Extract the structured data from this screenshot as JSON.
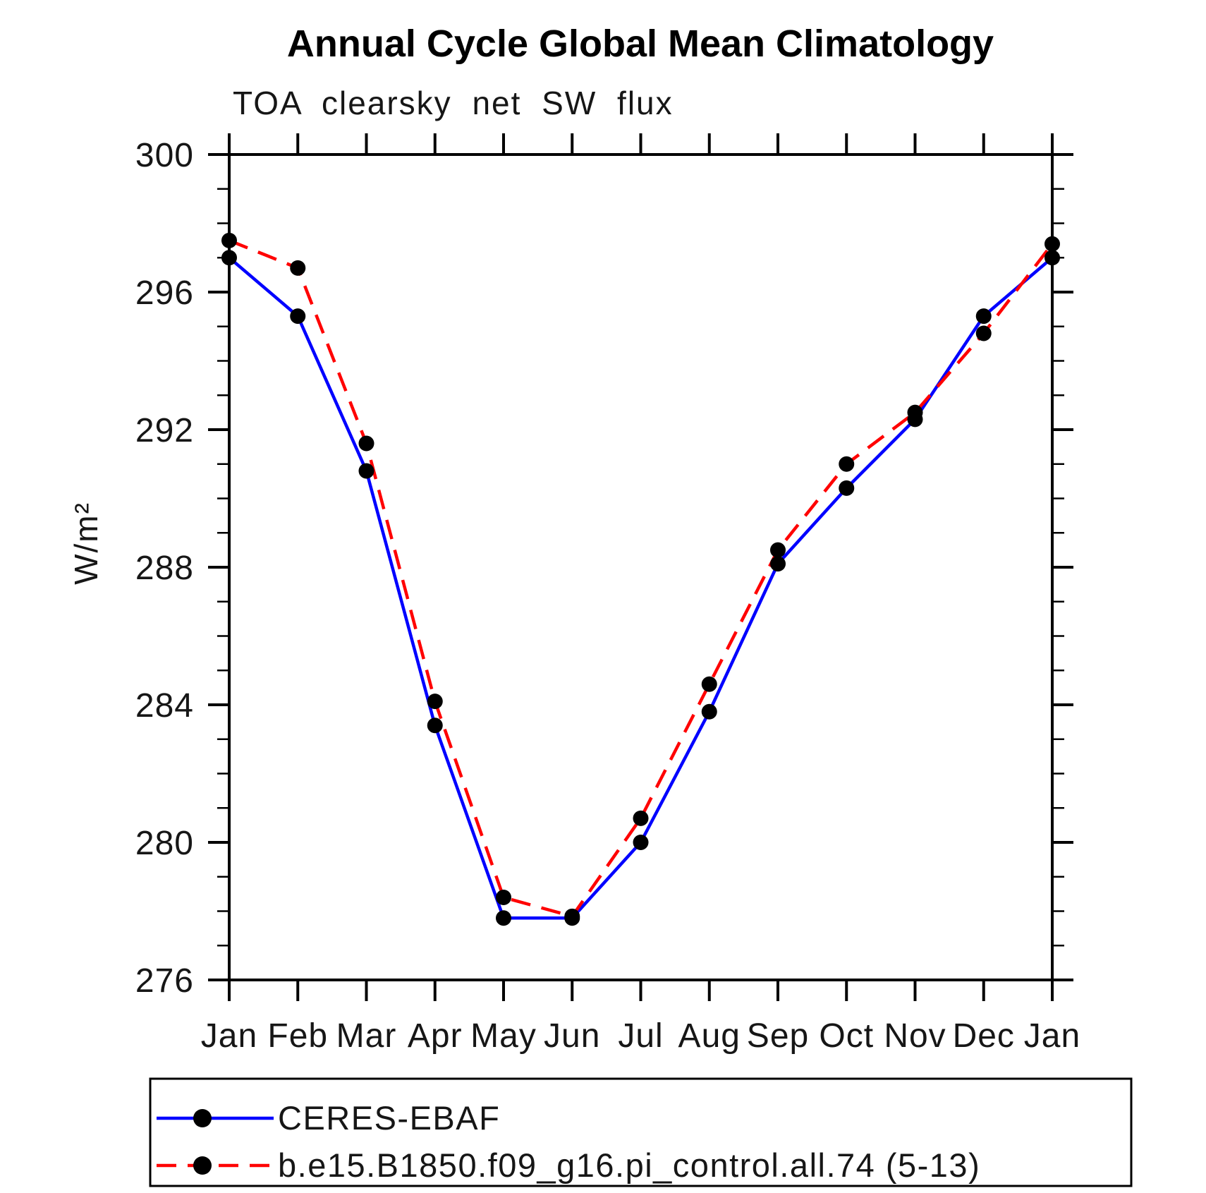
{
  "title": "Annual Cycle Global Mean Climatology",
  "subtitle": "TOA clearsky net SW flux",
  "chart_data": {
    "type": "line",
    "x_categories": [
      "Jan",
      "Feb",
      "Mar",
      "Apr",
      "May",
      "Jun",
      "Jul",
      "Aug",
      "Sep",
      "Oct",
      "Nov",
      "Dec",
      "Jan"
    ],
    "series": [
      {
        "name": "CERES-EBAF",
        "color": "#0000ff",
        "line_style": "solid",
        "marker": "circle",
        "marker_color": "#000000",
        "values": [
          297.0,
          295.3,
          290.8,
          283.4,
          277.8,
          277.8,
          280.0,
          283.8,
          288.1,
          290.3,
          292.3,
          295.3,
          297.0
        ]
      },
      {
        "name": "b.e15.B1850.f09_g16.pi_control.all.74 (5-13)",
        "color": "#ff0000",
        "line_style": "dashed",
        "marker": "circle",
        "marker_color": "#000000",
        "values": [
          297.5,
          296.7,
          291.6,
          284.1,
          278.4,
          277.85,
          280.7,
          284.6,
          288.5,
          291.0,
          292.5,
          294.8,
          297.4
        ]
      }
    ],
    "xlabel": "",
    "ylabel": "W/m²",
    "ylim": [
      276,
      300
    ],
    "y_major_ticks": [
      276,
      280,
      284,
      288,
      292,
      296,
      300
    ],
    "y_minor_step": 1,
    "x_tick_count": 13,
    "grid": false,
    "legend_position": "bottom-left",
    "axis_color": "#000000",
    "background_color": "#ffffff"
  }
}
